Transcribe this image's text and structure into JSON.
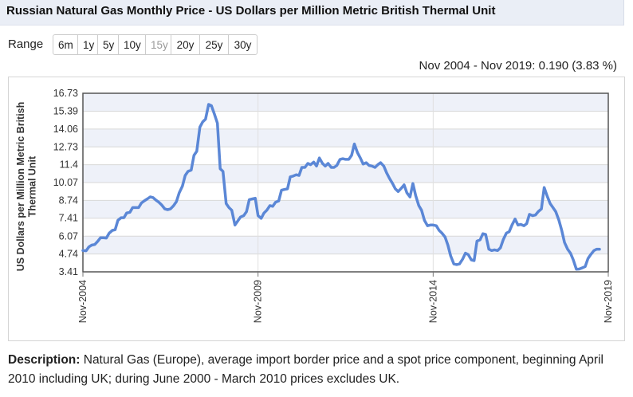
{
  "title": "Russian Natural Gas Monthly Price - US Dollars per Million Metric British Thermal Unit",
  "range": {
    "label": "Range",
    "buttons": [
      {
        "label": "6m",
        "enabled": true
      },
      {
        "label": "1y",
        "enabled": true
      },
      {
        "label": "5y",
        "enabled": true
      },
      {
        "label": "10y",
        "enabled": true
      },
      {
        "label": "15y",
        "enabled": false
      },
      {
        "label": "20y",
        "enabled": true
      },
      {
        "label": "25y",
        "enabled": true
      },
      {
        "label": "30y",
        "enabled": true
      }
    ]
  },
  "change_summary": "Nov 2004 - Nov 2019: 0.190 (3.83 %)",
  "description": {
    "label": "Description:",
    "text": " Natural Gas (Europe), average import border price and a spot price component, beginning April 2010 including UK; during June 2000 - March 2010 prices excludes UK."
  },
  "colors": {
    "line": "#5b87d6",
    "band": "#eef1f9",
    "header_bg": "#eaeef6"
  },
  "chart_data": {
    "type": "line",
    "title": "",
    "xlabel": "",
    "ylabel": "US Dollars per Million Metric British Thermal Unit",
    "ylim": [
      3.41,
      16.73
    ],
    "yticks": [
      "3.41",
      "4.74",
      "6.07",
      "7.41",
      "8.74",
      "10.07",
      "11.4",
      "12.73",
      "14.06",
      "15.39",
      "16.73"
    ],
    "xlim": [
      2004.83,
      2019.83
    ],
    "xticks": [
      {
        "label": "Nov-2004",
        "x": 2004.83
      },
      {
        "label": "Nov-2009",
        "x": 2009.83
      },
      {
        "label": "Nov-2014",
        "x": 2014.83
      },
      {
        "label": "Nov-2019",
        "x": 2019.83
      }
    ],
    "series": [
      {
        "name": "Russian Natural Gas",
        "points": [
          [
            2004.83,
            5.0
          ],
          [
            2004.92,
            4.98
          ],
          [
            2005.0,
            5.27
          ],
          [
            2005.08,
            5.4
          ],
          [
            2005.17,
            5.45
          ],
          [
            2005.25,
            5.68
          ],
          [
            2005.33,
            5.95
          ],
          [
            2005.42,
            5.95
          ],
          [
            2005.5,
            5.93
          ],
          [
            2005.58,
            6.3
          ],
          [
            2005.67,
            6.5
          ],
          [
            2005.75,
            6.55
          ],
          [
            2005.83,
            7.25
          ],
          [
            2005.92,
            7.45
          ],
          [
            2006.0,
            7.45
          ],
          [
            2006.08,
            7.8
          ],
          [
            2006.17,
            7.85
          ],
          [
            2006.25,
            8.2
          ],
          [
            2006.33,
            8.2
          ],
          [
            2006.42,
            8.2
          ],
          [
            2006.5,
            8.55
          ],
          [
            2006.58,
            8.7
          ],
          [
            2006.67,
            8.85
          ],
          [
            2006.75,
            9.0
          ],
          [
            2006.83,
            8.95
          ],
          [
            2006.92,
            8.75
          ],
          [
            2007.0,
            8.6
          ],
          [
            2007.08,
            8.4
          ],
          [
            2007.17,
            8.1
          ],
          [
            2007.25,
            8.05
          ],
          [
            2007.33,
            8.1
          ],
          [
            2007.42,
            8.35
          ],
          [
            2007.5,
            8.65
          ],
          [
            2007.58,
            9.3
          ],
          [
            2007.67,
            9.8
          ],
          [
            2007.75,
            10.6
          ],
          [
            2007.83,
            10.9
          ],
          [
            2007.92,
            11.0
          ],
          [
            2008.0,
            12.1
          ],
          [
            2008.08,
            12.4
          ],
          [
            2008.17,
            14.2
          ],
          [
            2008.25,
            14.6
          ],
          [
            2008.33,
            14.8
          ],
          [
            2008.42,
            15.9
          ],
          [
            2008.5,
            15.8
          ],
          [
            2008.58,
            15.2
          ],
          [
            2008.67,
            14.5
          ],
          [
            2008.75,
            11.1
          ],
          [
            2008.83,
            10.9
          ],
          [
            2008.92,
            8.5
          ],
          [
            2009.0,
            8.2
          ],
          [
            2009.08,
            8.0
          ],
          [
            2009.17,
            6.9
          ],
          [
            2009.25,
            7.2
          ],
          [
            2009.33,
            7.5
          ],
          [
            2009.42,
            7.6
          ],
          [
            2009.5,
            7.9
          ],
          [
            2009.58,
            8.8
          ],
          [
            2009.67,
            8.85
          ],
          [
            2009.75,
            8.9
          ],
          [
            2009.83,
            7.6
          ],
          [
            2009.92,
            7.4
          ],
          [
            2010.0,
            7.8
          ],
          [
            2010.08,
            8.0
          ],
          [
            2010.17,
            8.35
          ],
          [
            2010.25,
            8.3
          ],
          [
            2010.33,
            8.6
          ],
          [
            2010.42,
            8.7
          ],
          [
            2010.5,
            9.5
          ],
          [
            2010.58,
            9.55
          ],
          [
            2010.67,
            9.6
          ],
          [
            2010.75,
            10.5
          ],
          [
            2010.83,
            10.55
          ],
          [
            2010.92,
            10.65
          ],
          [
            2011.0,
            10.6
          ],
          [
            2011.08,
            11.2
          ],
          [
            2011.17,
            11.2
          ],
          [
            2011.25,
            11.5
          ],
          [
            2011.33,
            11.4
          ],
          [
            2011.42,
            11.6
          ],
          [
            2011.5,
            11.3
          ],
          [
            2011.58,
            11.9
          ],
          [
            2011.67,
            11.5
          ],
          [
            2011.75,
            11.3
          ],
          [
            2011.83,
            11.5
          ],
          [
            2011.92,
            11.2
          ],
          [
            2012.0,
            11.2
          ],
          [
            2012.08,
            11.35
          ],
          [
            2012.17,
            11.8
          ],
          [
            2012.25,
            11.85
          ],
          [
            2012.33,
            11.8
          ],
          [
            2012.42,
            11.8
          ],
          [
            2012.5,
            12.1
          ],
          [
            2012.58,
            12.95
          ],
          [
            2012.67,
            12.3
          ],
          [
            2012.75,
            11.9
          ],
          [
            2012.83,
            11.45
          ],
          [
            2012.92,
            11.55
          ],
          [
            2013.0,
            11.35
          ],
          [
            2013.08,
            11.3
          ],
          [
            2013.17,
            11.2
          ],
          [
            2013.25,
            11.4
          ],
          [
            2013.33,
            11.55
          ],
          [
            2013.42,
            11.3
          ],
          [
            2013.5,
            10.8
          ],
          [
            2013.58,
            10.4
          ],
          [
            2013.67,
            10.0
          ],
          [
            2013.75,
            9.6
          ],
          [
            2013.83,
            9.4
          ],
          [
            2013.92,
            9.65
          ],
          [
            2014.0,
            9.9
          ],
          [
            2014.08,
            9.3
          ],
          [
            2014.17,
            9.0
          ],
          [
            2014.25,
            10.0
          ],
          [
            2014.33,
            9.1
          ],
          [
            2014.42,
            8.35
          ],
          [
            2014.5,
            8.0
          ],
          [
            2014.58,
            7.25
          ],
          [
            2014.67,
            6.85
          ],
          [
            2014.75,
            6.9
          ],
          [
            2014.83,
            6.9
          ],
          [
            2014.92,
            6.85
          ],
          [
            2015.0,
            6.5
          ],
          [
            2015.08,
            6.3
          ],
          [
            2015.17,
            6.0
          ],
          [
            2015.25,
            5.4
          ],
          [
            2015.33,
            4.6
          ],
          [
            2015.42,
            4.0
          ],
          [
            2015.5,
            3.95
          ],
          [
            2015.58,
            4.0
          ],
          [
            2015.67,
            4.35
          ],
          [
            2015.75,
            4.8
          ],
          [
            2015.83,
            4.7
          ],
          [
            2015.92,
            4.3
          ],
          [
            2016.0,
            4.25
          ],
          [
            2016.08,
            5.7
          ],
          [
            2016.17,
            5.8
          ],
          [
            2016.25,
            6.25
          ],
          [
            2016.33,
            6.2
          ],
          [
            2016.42,
            5.1
          ],
          [
            2016.5,
            5.0
          ],
          [
            2016.58,
            5.05
          ],
          [
            2016.67,
            5.0
          ],
          [
            2016.75,
            5.2
          ],
          [
            2016.83,
            5.8
          ],
          [
            2016.92,
            6.3
          ],
          [
            2017.0,
            6.4
          ],
          [
            2017.08,
            6.9
          ],
          [
            2017.17,
            7.35
          ],
          [
            2017.25,
            6.9
          ],
          [
            2017.33,
            6.95
          ],
          [
            2017.42,
            6.85
          ],
          [
            2017.5,
            7.0
          ],
          [
            2017.58,
            7.7
          ],
          [
            2017.67,
            7.6
          ],
          [
            2017.75,
            7.65
          ],
          [
            2017.83,
            7.9
          ],
          [
            2017.92,
            8.1
          ],
          [
            2018.0,
            9.7
          ],
          [
            2018.08,
            9.1
          ],
          [
            2018.17,
            8.5
          ],
          [
            2018.25,
            8.2
          ],
          [
            2018.33,
            7.9
          ],
          [
            2018.42,
            7.25
          ],
          [
            2018.5,
            6.5
          ],
          [
            2018.58,
            5.6
          ],
          [
            2018.67,
            5.1
          ],
          [
            2018.75,
            4.8
          ],
          [
            2018.83,
            4.3
          ],
          [
            2018.92,
            3.6
          ],
          [
            2019.0,
            3.62
          ],
          [
            2019.08,
            3.7
          ],
          [
            2019.17,
            3.8
          ],
          [
            2019.25,
            4.4
          ],
          [
            2019.33,
            4.7
          ],
          [
            2019.42,
            5.0
          ],
          [
            2019.5,
            5.1
          ],
          [
            2019.58,
            5.1
          ]
        ]
      }
    ]
  }
}
